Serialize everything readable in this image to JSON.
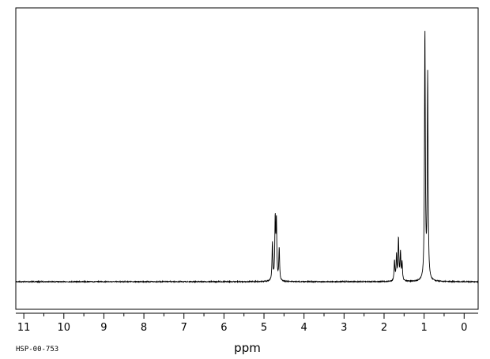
{
  "chart_data": {
    "type": "line",
    "title": "",
    "xlabel": "ppm",
    "ylabel": "",
    "xlim": [
      11.2,
      -0.35
    ],
    "x_reversed": true,
    "ylim": [
      0,
      100
    ],
    "grid": false,
    "legend": "none",
    "x_ticks": [
      11,
      10,
      9,
      8,
      7,
      6,
      5,
      4,
      3,
      2,
      1,
      0
    ],
    "x_tick_labels": [
      "11",
      "10",
      "9",
      "8",
      "7",
      "6",
      "5",
      "4",
      "3",
      "2",
      "1",
      "0"
    ],
    "x_minor_tick_step": 0.5,
    "series": [
      {
        "color": "#000000",
        "baseline": 0,
        "peaks": [
          {
            "ppm": 4.79,
            "height": 15
          },
          {
            "ppm": 4.72,
            "height": 24
          },
          {
            "ppm": 4.69,
            "height": 23
          },
          {
            "ppm": 4.62,
            "height": 13
          },
          {
            "ppm": 1.74,
            "height": 8
          },
          {
            "ppm": 1.69,
            "height": 10
          },
          {
            "ppm": 1.64,
            "height": 17
          },
          {
            "ppm": 1.59,
            "height": 11
          },
          {
            "ppm": 1.55,
            "height": 7
          },
          {
            "ppm": 0.98,
            "height": 100
          },
          {
            "ppm": 0.91,
            "height": 82
          }
        ]
      }
    ]
  },
  "footer_code": "HSP-00-753"
}
